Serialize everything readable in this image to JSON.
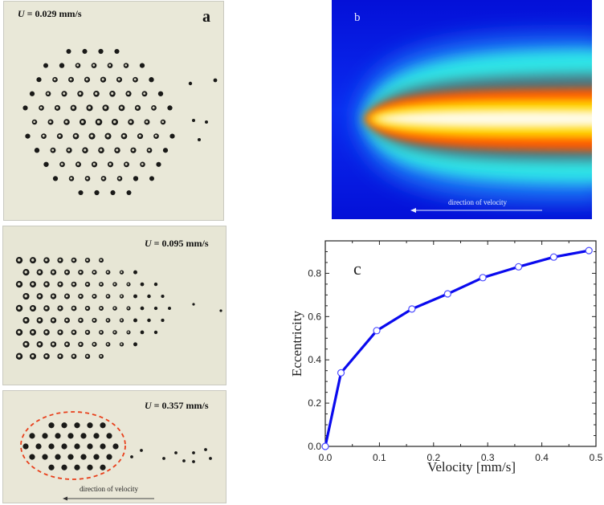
{
  "panel_a": {
    "letter": "a",
    "top": {
      "velocity_symbol": "U",
      "velocity_value": " = 0.029 mm/s"
    },
    "middle": {
      "velocity_symbol": "U",
      "velocity_value": " = 0.095 mm/s"
    },
    "bottom": {
      "velocity_symbol": "U",
      "velocity_value": " = 0.357 mm/s",
      "arrow_label": "direction of velocity"
    },
    "colors": {
      "background": "#e8e6d6",
      "ellipse_outline": "#e8401c"
    }
  },
  "panel_b": {
    "letter": "b",
    "arrow_label": "direction of velocity",
    "colors": {
      "outer": "#0a14e6",
      "cyan": "#30f0e8",
      "orange": "#ff6a00",
      "core": "#fffbe0"
    }
  },
  "chart_data": {
    "type": "line",
    "panel_letter": "c",
    "title": "",
    "xlabel": "Velocity [mm/s]",
    "ylabel": "Eccentricity",
    "xlim": [
      0.0,
      0.5
    ],
    "ylim": [
      0.0,
      0.95
    ],
    "xticks": [
      "0.0",
      "0.1",
      "0.2",
      "0.3",
      "0.4",
      "0.5"
    ],
    "yticks": [
      "0.0",
      "0.2",
      "0.4",
      "0.6",
      "0.8"
    ],
    "grid": false,
    "legend": null,
    "series": [
      {
        "name": "Eccentricity",
        "color": "#0a0aee",
        "marker": "open-circle",
        "x": [
          0.0,
          0.029,
          0.095,
          0.16,
          0.226,
          0.291,
          0.357,
          0.422,
          0.487
        ],
        "y": [
          0.0,
          0.34,
          0.535,
          0.635,
          0.705,
          0.78,
          0.83,
          0.875,
          0.905
        ]
      }
    ]
  }
}
